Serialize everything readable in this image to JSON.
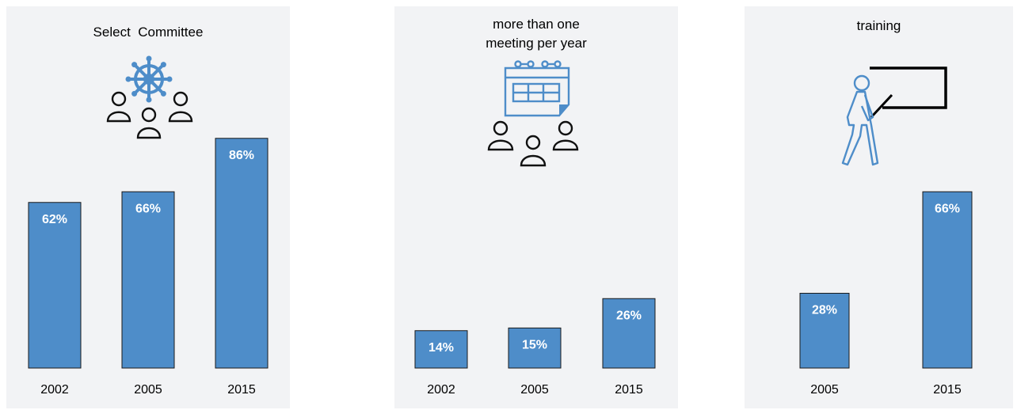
{
  "colors": {
    "bar": "#4e8dc9",
    "bar_stroke": "#1a1a1a",
    "panel_bg": "#f2f3f5",
    "icon_blue": "#4e8dc9"
  },
  "chart_data": [
    {
      "type": "bar",
      "title": "Select  Committee",
      "categories": [
        "2002",
        "2005",
        "2015"
      ],
      "values": [
        62,
        66,
        86
      ],
      "value_labels": [
        "62%",
        "66%",
        "86%"
      ],
      "ylim": [
        0,
        100
      ],
      "grid": false,
      "icons": [
        "ship-wheel-icon",
        "people-group-icon"
      ]
    },
    {
      "type": "bar",
      "title": "more than one meeting per year",
      "title_lines": [
        "more than one",
        "meeting per year"
      ],
      "categories": [
        "2002",
        "2005",
        "2015"
      ],
      "values": [
        14,
        15,
        26
      ],
      "value_labels": [
        "14%",
        "15%",
        "26%"
      ],
      "ylim": [
        0,
        100
      ],
      "grid": false,
      "icons": [
        "calendar-icon",
        "people-group-icon"
      ]
    },
    {
      "type": "bar",
      "title": "training",
      "categories": [
        "2005",
        "2015"
      ],
      "values": [
        28,
        66
      ],
      "value_labels": [
        "28%",
        "66%"
      ],
      "ylim": [
        0,
        100
      ],
      "grid": false,
      "icons": [
        "trainer-at-board-icon"
      ]
    }
  ]
}
